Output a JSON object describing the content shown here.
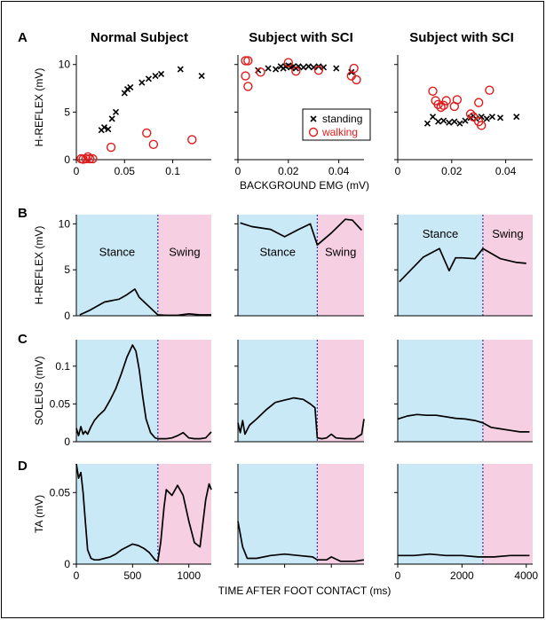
{
  "panel_letters": [
    "A",
    "B",
    "C",
    "D"
  ],
  "column_titles": [
    "Normal Subject",
    "Subject with SCI",
    "Subject with SCI"
  ],
  "stance_label": "Stance",
  "swing_label": "Swing",
  "colors": {
    "stance": "#c9e9f7",
    "swing": "#f6cfe2",
    "divider": "#3a3a9a",
    "walking": "#e01b1b",
    "standing": "#000000",
    "frame": "#000000"
  },
  "chart_data": [
    {
      "id": "A",
      "type": "scatter",
      "ylabel": "H-REFLEX (mV)",
      "xlabel": "BACKGROUND EMG (mV)",
      "legend": {
        "position": "bottom-right of middle panel",
        "entries": [
          {
            "name": "standing",
            "marker": "x",
            "color": "#000000"
          },
          {
            "name": "walking",
            "marker": "circle",
            "color": "#e01b1b"
          }
        ]
      },
      "panels": [
        {
          "xlim": [
            0,
            0.14
          ],
          "ylim": [
            0,
            11
          ],
          "xticks": [
            0,
            0.05,
            0.1
          ],
          "xticklabels": [
            "0",
            "0.05",
            "0.1"
          ],
          "yticks": [
            0,
            5,
            10
          ],
          "yticklabels": [
            "0",
            "5",
            "10"
          ],
          "standing": [
            [
              0.026,
              3.1
            ],
            [
              0.029,
              3.4
            ],
            [
              0.033,
              3.2
            ],
            [
              0.037,
              4.3
            ],
            [
              0.041,
              5.0
            ],
            [
              0.05,
              7.0
            ],
            [
              0.053,
              7.4
            ],
            [
              0.056,
              7.6
            ],
            [
              0.068,
              8.1
            ],
            [
              0.075,
              8.5
            ],
            [
              0.082,
              8.8
            ],
            [
              0.088,
              9.0
            ],
            [
              0.108,
              9.5
            ],
            [
              0.13,
              8.8
            ]
          ],
          "walking": [
            [
              0.005,
              0.1
            ],
            [
              0.007,
              0.05
            ],
            [
              0.01,
              0.1
            ],
            [
              0.012,
              0.3
            ],
            [
              0.014,
              0.1
            ],
            [
              0.017,
              0.1
            ],
            [
              0.036,
              1.3
            ],
            [
              0.073,
              2.8
            ],
            [
              0.08,
              1.6
            ],
            [
              0.12,
              2.1
            ]
          ]
        },
        {
          "xlim": [
            0,
            0.05
          ],
          "ylim": [
            0,
            11
          ],
          "xticks": [
            0,
            0.02,
            0.04
          ],
          "xticklabels": [
            "0",
            "0.02",
            "0.04"
          ],
          "yticks": [
            0,
            5,
            10
          ],
          "yticklabels": [
            "",
            "",
            ""
          ],
          "standing": [
            [
              0.008,
              9.4
            ],
            [
              0.012,
              9.6
            ],
            [
              0.015,
              9.5
            ],
            [
              0.017,
              9.8
            ],
            [
              0.018,
              9.6
            ],
            [
              0.019,
              9.8
            ],
            [
              0.02,
              9.9
            ],
            [
              0.021,
              9.7
            ],
            [
              0.022,
              9.8
            ],
            [
              0.023,
              9.6
            ],
            [
              0.024,
              9.8
            ],
            [
              0.026,
              9.7
            ],
            [
              0.028,
              9.8
            ],
            [
              0.03,
              9.7
            ],
            [
              0.032,
              9.8
            ],
            [
              0.034,
              9.7
            ],
            [
              0.039,
              9.6
            ],
            [
              0.045,
              9.2
            ]
          ],
          "walking": [
            [
              0.003,
              10.4
            ],
            [
              0.004,
              10.4
            ],
            [
              0.003,
              8.8
            ],
            [
              0.004,
              7.7
            ],
            [
              0.009,
              9.2
            ],
            [
              0.02,
              10.2
            ],
            [
              0.023,
              9.3
            ],
            [
              0.032,
              9.4
            ],
            [
              0.045,
              8.8
            ],
            [
              0.046,
              9.6
            ],
            [
              0.047,
              8.4
            ]
          ]
        },
        {
          "xlim": [
            0,
            0.05
          ],
          "ylim": [
            0,
            11
          ],
          "xticks": [
            0,
            0.02,
            0.04
          ],
          "xticklabels": [
            "0",
            "0.02",
            "0.04"
          ],
          "yticks": [
            0,
            5,
            10
          ],
          "yticklabels": [
            "",
            "",
            ""
          ],
          "standing": [
            [
              0.011,
              3.8
            ],
            [
              0.013,
              4.5
            ],
            [
              0.015,
              4.0
            ],
            [
              0.017,
              4.1
            ],
            [
              0.019,
              3.9
            ],
            [
              0.021,
              4.0
            ],
            [
              0.023,
              3.8
            ],
            [
              0.025,
              4.1
            ],
            [
              0.027,
              4.4
            ],
            [
              0.028,
              4.6
            ],
            [
              0.029,
              4.3
            ],
            [
              0.031,
              4.5
            ],
            [
              0.033,
              4.3
            ],
            [
              0.035,
              4.5
            ],
            [
              0.038,
              4.4
            ],
            [
              0.044,
              4.5
            ]
          ],
          "walking": [
            [
              0.013,
              7.2
            ],
            [
              0.014,
              6.2
            ],
            [
              0.015,
              5.8
            ],
            [
              0.016,
              5.5
            ],
            [
              0.017,
              5.7
            ],
            [
              0.018,
              6.2
            ],
            [
              0.021,
              5.6
            ],
            [
              0.022,
              6.3
            ],
            [
              0.027,
              4.8
            ],
            [
              0.028,
              4.5
            ],
            [
              0.03,
              6.0
            ],
            [
              0.03,
              4.0
            ],
            [
              0.031,
              3.6
            ],
            [
              0.034,
              7.3
            ]
          ]
        }
      ]
    },
    {
      "id": "B",
      "type": "line",
      "ylabel": "H-REFLEX (mV)",
      "panels": [
        {
          "xlim": [
            0,
            1200
          ],
          "ylim": [
            0,
            11
          ],
          "yticks": [
            0,
            5,
            10
          ],
          "yticklabels": [
            "0",
            "5",
            "10"
          ],
          "divider": 725,
          "phase_label_y": 6.5,
          "x": [
            30,
            120,
            250,
            380,
            450,
            520,
            560,
            725,
            800,
            900,
            1000,
            1100,
            1200
          ],
          "y": [
            0.1,
            0.6,
            1.5,
            1.8,
            2.3,
            2.9,
            2.0,
            0.1,
            0.05,
            0.05,
            0.2,
            0.1,
            0.1
          ]
        },
        {
          "xlim": [
            0,
            2700
          ],
          "ylim": [
            0,
            11
          ],
          "yticks": [
            0,
            5,
            10
          ],
          "yticklabels": [
            "",
            "",
            ""
          ],
          "divider": 1700,
          "phase_label_y": 6.5,
          "x": [
            50,
            300,
            700,
            1000,
            1300,
            1550,
            1700,
            2000,
            2300,
            2450,
            2650
          ],
          "y": [
            10.1,
            9.7,
            9.4,
            8.6,
            9.4,
            10.0,
            7.7,
            9.0,
            10.5,
            10.4,
            9.3
          ]
        },
        {
          "xlim": [
            0,
            4200
          ],
          "ylim": [
            0,
            11
          ],
          "yticks": [
            0,
            5,
            10
          ],
          "yticklabels": [
            "",
            "",
            ""
          ],
          "divider": 2650,
          "phase_label_y": 8.5,
          "x": [
            50,
            300,
            800,
            1300,
            1600,
            1800,
            2000,
            2400,
            2650,
            3200,
            3700,
            4000
          ],
          "y": [
            3.7,
            4.6,
            6.4,
            7.3,
            4.9,
            6.3,
            6.3,
            6.2,
            7.3,
            6.2,
            5.8,
            5.7
          ]
        }
      ]
    },
    {
      "id": "C",
      "type": "line",
      "ylabel": "SOLEUS (mV)",
      "panels": [
        {
          "xlim": [
            0,
            1200
          ],
          "ylim": [
            0,
            0.135
          ],
          "yticks": [
            0,
            0.05,
            0.1
          ],
          "yticklabels": [
            "0",
            "0.05",
            "0.1"
          ],
          "divider": 725,
          "x": [
            0,
            20,
            40,
            60,
            80,
            100,
            130,
            160,
            200,
            250,
            300,
            350,
            400,
            450,
            500,
            530,
            560,
            590,
            620,
            660,
            700,
            725,
            760,
            800,
            850,
            900,
            950,
            1000,
            1050,
            1100,
            1150,
            1200
          ],
          "y": [
            0.018,
            0.008,
            0.02,
            0.01,
            0.014,
            0.01,
            0.02,
            0.028,
            0.035,
            0.042,
            0.055,
            0.07,
            0.09,
            0.112,
            0.128,
            0.12,
            0.095,
            0.06,
            0.03,
            0.012,
            0.005,
            0.004,
            0.004,
            0.004,
            0.005,
            0.008,
            0.012,
            0.005,
            0.004,
            0.004,
            0.005,
            0.013
          ]
        },
        {
          "xlim": [
            0,
            2700
          ],
          "ylim": [
            0,
            0.135
          ],
          "yticks": [
            0,
            0.05,
            0.1
          ],
          "yticklabels": [
            "",
            "",
            ""
          ],
          "divider": 1700,
          "x": [
            0,
            50,
            100,
            150,
            250,
            400,
            600,
            800,
            1000,
            1200,
            1400,
            1550,
            1650,
            1700,
            1800,
            1900,
            2000,
            2100,
            2300,
            2500,
            2650,
            2700
          ],
          "y": [
            0.025,
            0.012,
            0.028,
            0.01,
            0.022,
            0.03,
            0.042,
            0.052,
            0.055,
            0.058,
            0.056,
            0.05,
            0.045,
            0.005,
            0.004,
            0.005,
            0.01,
            0.005,
            0.004,
            0.004,
            0.01,
            0.03
          ]
        },
        {
          "xlim": [
            0,
            4200
          ],
          "ylim": [
            0,
            0.135
          ],
          "yticks": [
            0,
            0.05,
            0.1
          ],
          "yticklabels": [
            "",
            "",
            ""
          ],
          "divider": 2650,
          "x": [
            0,
            300,
            600,
            900,
            1200,
            1500,
            1800,
            2100,
            2400,
            2650,
            2900,
            3200,
            3500,
            3800,
            4100
          ],
          "y": [
            0.03,
            0.034,
            0.036,
            0.035,
            0.035,
            0.033,
            0.031,
            0.03,
            0.028,
            0.025,
            0.019,
            0.017,
            0.015,
            0.013,
            0.013
          ]
        }
      ]
    },
    {
      "id": "D",
      "type": "line",
      "ylabel": "TA (mV)",
      "xlabel": "TIME AFTER FOOT CONTACT (ms)",
      "panels": [
        {
          "xlim": [
            0,
            1200
          ],
          "ylim": [
            0,
            0.07
          ],
          "yticks": [
            0,
            0.05
          ],
          "yticklabels": [
            "0",
            "0.05"
          ],
          "xticks": [
            0,
            500,
            1000
          ],
          "xticklabels": [
            "0",
            "500",
            "1000"
          ],
          "divider": 725,
          "x": [
            0,
            20,
            40,
            60,
            80,
            100,
            130,
            160,
            200,
            250,
            300,
            350,
            400,
            450,
            500,
            550,
            600,
            650,
            700,
            725,
            750,
            780,
            800,
            850,
            900,
            950,
            1000,
            1050,
            1100,
            1150,
            1180,
            1200
          ],
          "y": [
            0.07,
            0.06,
            0.064,
            0.05,
            0.03,
            0.01,
            0.004,
            0.003,
            0.003,
            0.004,
            0.005,
            0.007,
            0.01,
            0.012,
            0.014,
            0.013,
            0.011,
            0.008,
            0.003,
            0.002,
            0.015,
            0.04,
            0.052,
            0.048,
            0.055,
            0.048,
            0.03,
            0.015,
            0.012,
            0.045,
            0.056,
            0.052
          ]
        },
        {
          "xlim": [
            0,
            2700
          ],
          "ylim": [
            0,
            0.07
          ],
          "yticks": [
            0,
            0.05
          ],
          "yticklabels": [
            "",
            ""
          ],
          "xticks": [
            0,
            1000,
            2000
          ],
          "xticklabels": [
            "",
            "",
            ""
          ],
          "divider": 1700,
          "x": [
            0,
            100,
            200,
            400,
            700,
            1000,
            1300,
            1600,
            1700,
            1900,
            2000,
            2200,
            2500,
            2700
          ],
          "y": [
            0.03,
            0.012,
            0.004,
            0.004,
            0.006,
            0.007,
            0.006,
            0.005,
            0.003,
            0.003,
            0.005,
            0.002,
            0.002,
            0.003
          ]
        },
        {
          "xlim": [
            0,
            4200
          ],
          "ylim": [
            0,
            0.07
          ],
          "yticks": [
            0,
            0.05
          ],
          "yticklabels": [
            "",
            ""
          ],
          "xticks": [
            0,
            2000,
            4000
          ],
          "xticklabels": [
            "0",
            "2000",
            "4000"
          ],
          "divider": 2650,
          "x": [
            0,
            500,
            1000,
            1500,
            2000,
            2500,
            2650,
            3000,
            3500,
            4000,
            4100
          ],
          "y": [
            0.006,
            0.006,
            0.007,
            0.006,
            0.006,
            0.005,
            0.005,
            0.005,
            0.006,
            0.006,
            0.006
          ]
        }
      ]
    }
  ]
}
